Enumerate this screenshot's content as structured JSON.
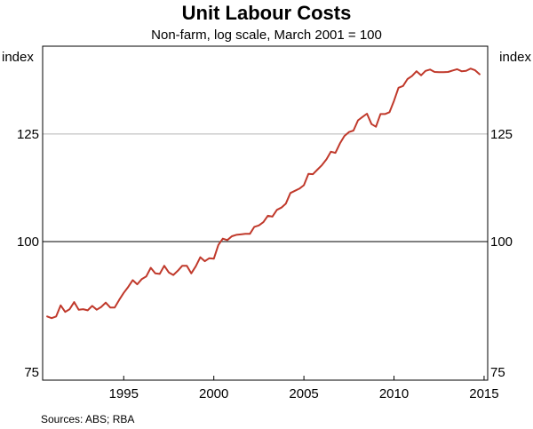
{
  "chart_data": {
    "type": "line",
    "title": "Unit Labour Costs",
    "subtitle": "Non-farm, log scale, March 2001 = 100",
    "y_unit_left": "index",
    "y_unit_right": "index",
    "y_scale": "log",
    "ylim": [
      75,
      150
    ],
    "xlim": [
      1990.5,
      2015.2
    ],
    "y_ticks": [
      75,
      100,
      125
    ],
    "x_ticks": [
      1995,
      2000,
      2005,
      2010,
      2015
    ],
    "grid": "horizontal",
    "source": "Sources:  ABS; RBA",
    "series": [
      {
        "color": "#c0392b",
        "x": [
          1990.75,
          1991.0,
          1991.25,
          1991.5,
          1991.75,
          1992.0,
          1992.25,
          1992.5,
          1992.75,
          1993.0,
          1993.25,
          1993.5,
          1993.75,
          1994.0,
          1994.25,
          1994.5,
          1994.75,
          1995.0,
          1995.25,
          1995.5,
          1995.75,
          1996.0,
          1996.25,
          1996.5,
          1996.75,
          1997.0,
          1997.25,
          1997.5,
          1997.75,
          1998.0,
          1998.25,
          1998.5,
          1998.75,
          1999.0,
          1999.25,
          1999.5,
          1999.75,
          2000.0,
          2000.25,
          2000.5,
          2000.75,
          2001.0,
          2001.25,
          2001.5,
          2001.75,
          2002.0,
          2002.25,
          2002.5,
          2002.75,
          2003.0,
          2003.25,
          2003.5,
          2003.75,
          2004.0,
          2004.25,
          2004.5,
          2004.75,
          2005.0,
          2005.25,
          2005.5,
          2005.75,
          2006.0,
          2006.25,
          2006.5,
          2006.75,
          2007.0,
          2007.25,
          2007.5,
          2007.75,
          2008.0,
          2008.25,
          2008.5,
          2008.75,
          2009.0,
          2009.25,
          2009.5,
          2009.75,
          2010.0,
          2010.25,
          2010.5,
          2010.75,
          2011.0,
          2011.25,
          2011.5,
          2011.75,
          2012.0,
          2012.25,
          2012.5,
          2012.75,
          2013.0,
          2013.25,
          2013.5,
          2013.75,
          2014.0,
          2014.25,
          2014.5,
          2014.75
        ],
        "y": [
          85.6,
          85.3,
          85.6,
          87.6,
          86.4,
          86.9,
          88.2,
          86.8,
          86.9,
          86.7,
          87.5,
          86.8,
          87.3,
          88.1,
          87.2,
          87.2,
          88.6,
          89.9,
          91.0,
          92.3,
          91.5,
          92.5,
          93.0,
          94.7,
          93.6,
          93.5,
          95.1,
          93.8,
          93.3,
          94.1,
          95.1,
          95.1,
          93.6,
          95.0,
          96.8,
          96.0,
          96.6,
          96.5,
          99.3,
          100.6,
          100.3,
          101.1,
          101.4,
          101.5,
          101.6,
          101.6,
          103.1,
          103.4,
          104.1,
          105.5,
          105.3,
          106.8,
          107.3,
          108.2,
          110.6,
          111.1,
          111.6,
          112.4,
          115.1,
          115.0,
          116.1,
          117.2,
          118.6,
          120.5,
          120.2,
          122.6,
          124.5,
          125.5,
          125.9,
          128.6,
          129.5,
          130.4,
          127.6,
          126.9,
          130.3,
          130.3,
          130.8,
          133.9,
          137.6,
          138.1,
          140.1,
          141.0,
          142.4,
          141.2,
          142.5,
          142.9,
          142.2,
          142.1,
          142.1,
          142.2,
          142.6,
          143.0,
          142.4,
          142.5,
          143.2,
          142.7,
          141.5
        ]
      }
    ]
  }
}
